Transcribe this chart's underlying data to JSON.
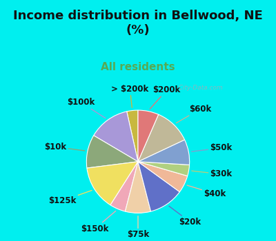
{
  "title": "Income distribution in Bellwood, NE\n(%)",
  "subtitle": "All residents",
  "bg_cyan": "#00EFEF",
  "chart_bg_color": "#e8f5f0",
  "labels": [
    "> $200k",
    "$100k",
    "$10k",
    "$125k",
    "$150k",
    "$75k",
    "$20k",
    "$40k",
    "$30k",
    "$50k",
    "$60k",
    "$200k"
  ],
  "values": [
    3.5,
    13.0,
    10.5,
    14.0,
    5.0,
    8.0,
    11.0,
    5.5,
    3.5,
    8.0,
    11.5,
    6.5
  ],
  "colors": [
    "#c8b840",
    "#a898d8",
    "#8ca87a",
    "#f0e060",
    "#f0a8b8",
    "#f0d0a8",
    "#6070c8",
    "#f0b898",
    "#b0d080",
    "#80a0d0",
    "#c0b898",
    "#e07878"
  ],
  "start_angle": 90,
  "watermark": "  City-Data.com",
  "title_fontsize": 13,
  "subtitle_fontsize": 11,
  "label_fontsize": 8.5,
  "title_color": "#111111",
  "subtitle_color": "#55aa55"
}
